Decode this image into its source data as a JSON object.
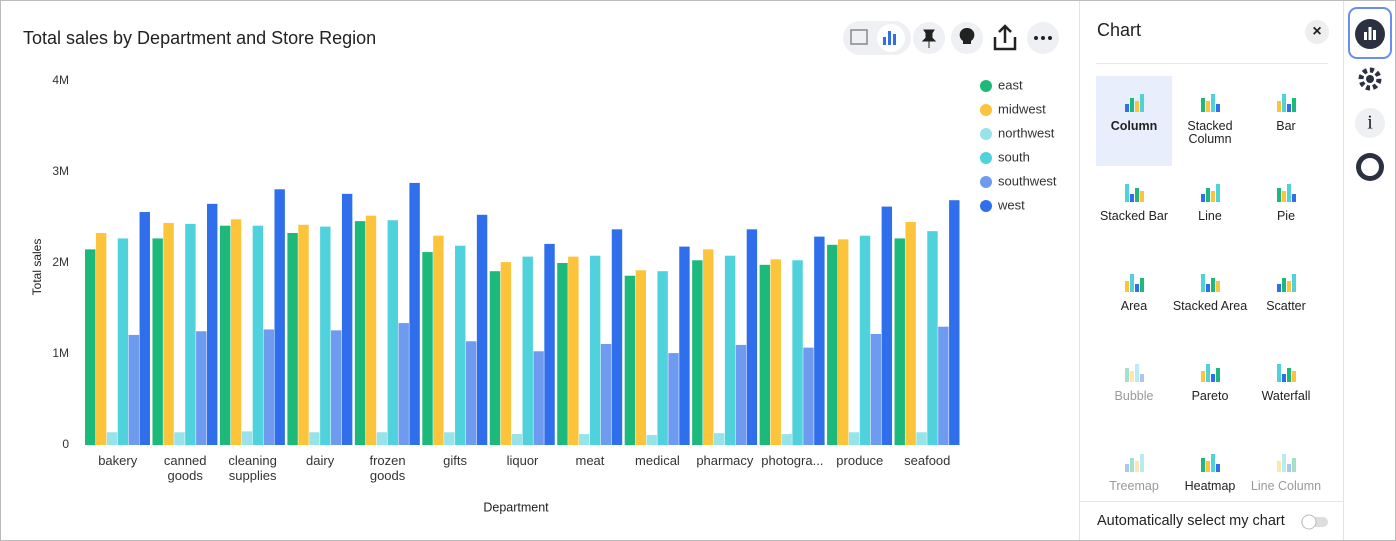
{
  "chart_data": {
    "type": "bar",
    "title": "Total sales by Department and Store Region",
    "x_label": "Department",
    "y_label": "Total sales",
    "categories": [
      "bakery",
      "canned goods",
      "cleaning supplies",
      "dairy",
      "frozen goods",
      "gifts",
      "liquor",
      "meat",
      "medical",
      "pharmacy",
      "photogra...",
      "produce",
      "seafood"
    ],
    "series": [
      {
        "name": "east",
        "color": "#1cb97a",
        "values": [
          2150000,
          2270000,
          2410000,
          2330000,
          2460000,
          2120000,
          1910000,
          2000000,
          1860000,
          2030000,
          1980000,
          2200000,
          2270000
        ]
      },
      {
        "name": "midwest",
        "color": "#fbc43a",
        "values": [
          2330000,
          2440000,
          2480000,
          2420000,
          2520000,
          2300000,
          2010000,
          2070000,
          1920000,
          2150000,
          2040000,
          2260000,
          2450000
        ]
      },
      {
        "name": "northwest",
        "color": "#97e3ea",
        "values": [
          140000,
          140000,
          150000,
          140000,
          140000,
          140000,
          120000,
          120000,
          110000,
          130000,
          120000,
          140000,
          140000
        ]
      },
      {
        "name": "south",
        "color": "#4fd2dc",
        "values": [
          2270000,
          2430000,
          2410000,
          2400000,
          2470000,
          2190000,
          2070000,
          2080000,
          1910000,
          2080000,
          2030000,
          2300000,
          2350000
        ]
      },
      {
        "name": "southwest",
        "color": "#6e9af0",
        "values": [
          1210000,
          1250000,
          1270000,
          1260000,
          1340000,
          1140000,
          1030000,
          1110000,
          1010000,
          1100000,
          1070000,
          1220000,
          1300000
        ]
      },
      {
        "name": "west",
        "color": "#2f6fec",
        "values": [
          2560000,
          2650000,
          2810000,
          2760000,
          2880000,
          2530000,
          2210000,
          2370000,
          2180000,
          2370000,
          2290000,
          2620000,
          2690000
        ]
      }
    ],
    "ylim": [
      0,
      4000000
    ],
    "yticks": [
      0,
      {
        "value": 1000000,
        "label": "1M"
      },
      {
        "value": 2000000,
        "label": "2M"
      },
      {
        "value": 3000000,
        "label": "3M"
      },
      {
        "value": 4000000,
        "label": "4M"
      }
    ],
    "grid": false,
    "legend": "right"
  },
  "panel": {
    "title": "Chart",
    "close": "×",
    "types": [
      {
        "label": "Column",
        "enabled": true,
        "selected": true
      },
      {
        "label": "Stacked Column",
        "enabled": true
      },
      {
        "label": "Bar",
        "enabled": true
      },
      {
        "label": "Stacked Bar",
        "enabled": true
      },
      {
        "label": "Line",
        "enabled": true
      },
      {
        "label": "Pie",
        "enabled": true
      },
      {
        "label": "Area",
        "enabled": true
      },
      {
        "label": "Stacked Area",
        "enabled": true
      },
      {
        "label": "Scatter",
        "enabled": true
      },
      {
        "label": "Bubble",
        "enabled": false
      },
      {
        "label": "Pareto",
        "enabled": true
      },
      {
        "label": "Waterfall",
        "enabled": true
      },
      {
        "label": "Treemap",
        "enabled": false
      },
      {
        "label": "Heatmap",
        "enabled": true
      },
      {
        "label": "Line Column",
        "enabled": false
      }
    ],
    "auto_select": "Automatically select my chart"
  },
  "sidebar": {
    "info": "i"
  }
}
